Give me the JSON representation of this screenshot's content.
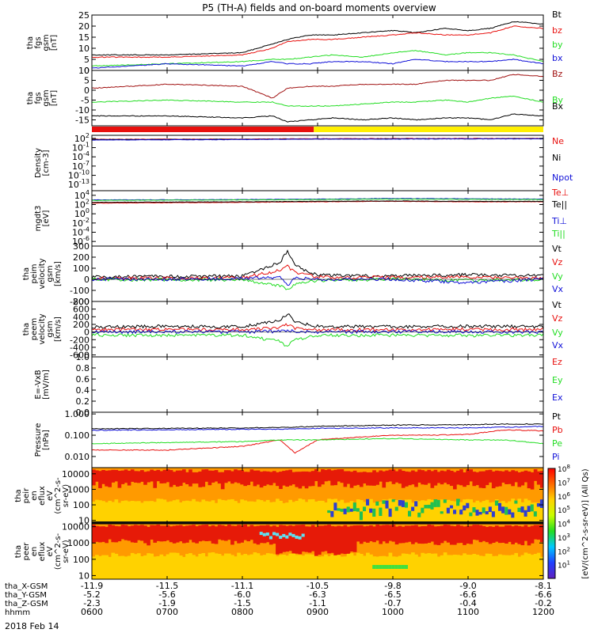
{
  "title": "P5 (TH-A) fields and on-board moments overview",
  "date": "2018 Feb 14",
  "colors": {
    "black": "#000000",
    "red": "#e8100e",
    "green": "#22dd22",
    "blue": "#1010d8",
    "darkred": "#a01010",
    "yellow": "#ffef00"
  },
  "chart_data": [
    {
      "type": "line",
      "ylabel": [
        "tha",
        "fgs",
        "gsm",
        "[nT]"
      ],
      "ylim": [
        0,
        25
      ],
      "scale": "linear",
      "ticks": [
        0,
        5,
        10,
        15,
        20,
        25
      ],
      "legend": [
        "Bt",
        "bz",
        "by",
        "bx"
      ],
      "legend_colors": [
        "black",
        "red",
        "green",
        "blue"
      ],
      "series": [
        {
          "name": "Bt",
          "color": "black",
          "x": [
            6.0,
            7.0,
            8.0,
            8.4,
            8.6,
            8.9,
            9.2,
            9.6,
            10.0,
            10.3,
            10.7,
            11.0,
            11.3,
            11.6,
            12.0
          ],
          "y": [
            7,
            7,
            8,
            12,
            14,
            16,
            16,
            17,
            18,
            17,
            19,
            18,
            19,
            22,
            21
          ]
        },
        {
          "name": "bz",
          "color": "red",
          "x": [
            6.0,
            7.0,
            8.0,
            8.4,
            8.6,
            8.9,
            9.2,
            9.6,
            10.0,
            10.3,
            10.7,
            11.0,
            11.3,
            11.6,
            12.0
          ],
          "y": [
            6,
            6,
            7,
            10,
            13,
            14,
            14,
            15,
            16,
            17,
            16,
            16,
            17,
            20,
            19
          ]
        },
        {
          "name": "by",
          "color": "green",
          "x": [
            6.0,
            7.0,
            8.0,
            8.4,
            8.6,
            8.9,
            9.2,
            9.6,
            10.0,
            10.3,
            10.7,
            11.0,
            11.3,
            11.6,
            12.0
          ],
          "y": [
            2,
            3,
            4,
            5,
            5,
            6,
            7,
            6,
            8,
            9,
            7,
            8,
            8,
            7,
            4
          ]
        },
        {
          "name": "bx",
          "color": "blue",
          "x": [
            6.0,
            7.0,
            8.0,
            8.4,
            8.6,
            8.9,
            9.2,
            9.6,
            10.0,
            10.3,
            10.7,
            11.0,
            11.3,
            11.6,
            12.0
          ],
          "y": [
            1,
            3,
            2,
            4,
            3,
            3,
            4,
            4,
            3,
            5,
            4,
            4,
            4,
            5,
            3
          ]
        }
      ]
    },
    {
      "type": "line",
      "ylabel": [
        "tha",
        "fgs",
        "gsm",
        "[nT]"
      ],
      "ylim": [
        -18,
        10
      ],
      "scale": "linear",
      "ticks": [
        -15,
        -10,
        -5,
        0,
        5,
        10
      ],
      "legend": [
        "Bz",
        "By",
        "Bx"
      ],
      "legend_colors": [
        "darkred",
        "green",
        "black"
      ],
      "series": [
        {
          "name": "Bz",
          "color": "darkred",
          "x": [
            6.0,
            7.0,
            8.0,
            8.4,
            8.6,
            8.9,
            9.2,
            9.6,
            10.0,
            10.3,
            10.7,
            11.0,
            11.3,
            11.6,
            12.0
          ],
          "y": [
            1,
            3,
            2,
            -4,
            1,
            2,
            2,
            3,
            3,
            3,
            5,
            5,
            5,
            8,
            7
          ]
        },
        {
          "name": "By",
          "color": "green",
          "x": [
            6.0,
            7.0,
            8.0,
            8.4,
            8.6,
            8.9,
            9.2,
            9.6,
            10.0,
            10.3,
            10.7,
            11.0,
            11.3,
            11.6,
            12.0
          ],
          "y": [
            -6,
            -5,
            -6,
            -6,
            -8,
            -8,
            -8,
            -7,
            -6,
            -6,
            -5,
            -6,
            -4,
            -3,
            -6
          ]
        },
        {
          "name": "Bx",
          "color": "black",
          "x": [
            6.0,
            7.0,
            8.0,
            8.4,
            8.6,
            8.9,
            9.2,
            9.6,
            10.0,
            10.3,
            10.7,
            11.0,
            11.3,
            11.6,
            12.0
          ],
          "y": [
            -13,
            -13,
            -14,
            -13,
            -16,
            -15,
            -14,
            -15,
            -14,
            -15,
            -14,
            -14,
            -15,
            -12,
            -13
          ]
        }
      ]
    },
    {
      "type": "bar",
      "name": "mode_bar",
      "segments": [
        {
          "from": 6.0,
          "to": 8.95,
          "color": "red"
        },
        {
          "from": 8.95,
          "to": 12.0,
          "color": "yellow"
        }
      ]
    },
    {
      "type": "line",
      "ylabel": [
        "Density",
        "[cm-3]"
      ],
      "ylim": [
        1e-15,
        1000
      ],
      "scale": "log",
      "ticks": [
        {
          "exp": 2
        },
        {
          "exp": -1
        },
        {
          "exp": -4
        },
        {
          "exp": -7
        },
        {
          "exp": -10
        },
        {
          "exp": -13
        }
      ],
      "legend": [
        "Ne",
        "Ni",
        "Npot"
      ],
      "legend_colors": [
        "red",
        "black",
        "blue"
      ],
      "series": [
        {
          "name": "Ne",
          "color": "red",
          "x": [
            6.0,
            8.0,
            9.0,
            10.0,
            11.0,
            12.0
          ],
          "y": [
            50,
            60,
            80,
            90,
            90,
            100
          ]
        },
        {
          "name": "Ni",
          "color": "black",
          "x": [
            6.0,
            8.0,
            9.0,
            10.0,
            11.0,
            12.0
          ],
          "y": [
            40,
            50,
            60,
            70,
            70,
            80
          ]
        },
        {
          "name": "Npot",
          "color": "blue",
          "x": [
            6.0,
            8.0,
            9.0,
            10.0,
            11.0,
            12.0
          ],
          "y": [
            30,
            40,
            60,
            60,
            70,
            70
          ]
        }
      ]
    },
    {
      "type": "line",
      "ylabel": [
        "mgdt3",
        "[eV]"
      ],
      "ylim": [
        1e-07,
        100000
      ],
      "scale": "log",
      "ticks": [
        {
          "exp": 4
        },
        {
          "exp": 2
        },
        {
          "exp": 0
        },
        {
          "exp": -2
        },
        {
          "exp": -4
        },
        {
          "exp": -6
        }
      ],
      "legend": [
        "Te⊥",
        "Te||",
        "Ti⊥",
        "Ti||"
      ],
      "legend_colors": [
        "red",
        "black",
        "blue",
        "green"
      ],
      "series": [
        {
          "name": "Te⊥",
          "color": "red",
          "x": [
            6.0,
            8.0,
            9.0,
            10.0,
            11.0,
            12.0
          ],
          "y": [
            200,
            300,
            400,
            500,
            400,
            400
          ]
        },
        {
          "name": "Te||",
          "color": "black",
          "x": [
            6.0,
            8.0,
            9.0,
            10.0,
            11.0,
            12.0
          ],
          "y": [
            300,
            400,
            500,
            600,
            500,
            500
          ]
        },
        {
          "name": "Ti⊥",
          "color": "blue",
          "x": [
            6.0,
            8.0,
            9.0,
            10.0,
            11.0,
            12.0
          ],
          "y": [
            1000,
            1200,
            1500,
            2000,
            1800,
            1500
          ]
        },
        {
          "name": "Ti||",
          "color": "green",
          "x": [
            6.0,
            8.0,
            9.0,
            10.0,
            11.0,
            12.0
          ],
          "y": [
            800,
            1000,
            1200,
            1500,
            1400,
            1200
          ]
        }
      ]
    },
    {
      "type": "line",
      "ylabel": [
        "tha",
        "peim",
        "velocity",
        "gsm",
        "[km/s]"
      ],
      "ylim": [
        -200,
        300
      ],
      "scale": "linear",
      "ticks": [
        -200,
        -100,
        0,
        100,
        200,
        300
      ],
      "legend": [
        "Vt",
        "Vz",
        "Vy",
        "Vx"
      ],
      "legend_colors": [
        "black",
        "red",
        "green",
        "blue"
      ],
      "series": [
        {
          "name": "Vt",
          "color": "black",
          "x": [
            6.0,
            7.0,
            8.0,
            8.5,
            8.6,
            8.7,
            9.0,
            9.5,
            10.0,
            11.0,
            12.0
          ],
          "y": [
            20,
            25,
            30,
            150,
            260,
            120,
            40,
            30,
            30,
            40,
            30
          ]
        },
        {
          "name": "Vz",
          "color": "red",
          "x": [
            6.0,
            7.0,
            8.0,
            8.5,
            8.6,
            8.7,
            9.0,
            9.5,
            10.0,
            11.0,
            12.0
          ],
          "y": [
            10,
            10,
            15,
            80,
            120,
            60,
            20,
            15,
            20,
            20,
            10
          ]
        },
        {
          "name": "Vy",
          "color": "green",
          "x": [
            6.0,
            7.0,
            8.0,
            8.5,
            8.6,
            8.7,
            9.0,
            9.5,
            10.0,
            11.0,
            12.0
          ],
          "y": [
            0,
            -5,
            -5,
            -60,
            -100,
            -40,
            -10,
            -5,
            0,
            -10,
            -5
          ]
        },
        {
          "name": "Vx",
          "color": "blue",
          "x": [
            6.0,
            7.0,
            8.0,
            8.5,
            8.6,
            8.7,
            9.0,
            9.5,
            10.0,
            11.0,
            12.0
          ],
          "y": [
            0,
            0,
            5,
            20,
            -60,
            10,
            0,
            0,
            0,
            -30,
            0
          ]
        }
      ]
    },
    {
      "type": "line",
      "ylabel": [
        "tha",
        "peem",
        "velocity",
        "gsm",
        "[km/s]"
      ],
      "ylim": [
        -650,
        800
      ],
      "scale": "linear",
      "ticks": [
        -600,
        -400,
        -200,
        0,
        200,
        400,
        600,
        800
      ],
      "legend": [
        "Vt",
        "Vz",
        "Vy",
        "Vx"
      ],
      "legend_colors": [
        "black",
        "red",
        "green",
        "blue"
      ],
      "series": [
        {
          "name": "Vt",
          "color": "black",
          "x": [
            6.0,
            7.0,
            8.0,
            8.5,
            8.6,
            8.7,
            9.0,
            10.0,
            11.0,
            12.0
          ],
          "y": [
            130,
            150,
            140,
            300,
            480,
            250,
            150,
            140,
            150,
            140
          ]
        },
        {
          "name": "Vz",
          "color": "red",
          "x": [
            6.0,
            7.0,
            8.0,
            8.5,
            8.6,
            8.7,
            9.0,
            10.0,
            11.0,
            12.0
          ],
          "y": [
            60,
            70,
            60,
            120,
            200,
            100,
            60,
            60,
            70,
            60
          ]
        },
        {
          "name": "Vy",
          "color": "green",
          "x": [
            6.0,
            7.0,
            8.0,
            8.5,
            8.6,
            8.7,
            9.0,
            10.0,
            11.0,
            12.0
          ],
          "y": [
            -80,
            -90,
            -80,
            -250,
            -380,
            -200,
            -90,
            -80,
            -90,
            -80
          ]
        },
        {
          "name": "Vx",
          "color": "blue",
          "x": [
            6.0,
            7.0,
            8.0,
            8.5,
            8.6,
            8.7,
            9.0,
            10.0,
            11.0,
            12.0
          ],
          "y": [
            0,
            10,
            0,
            20,
            40,
            10,
            0,
            10,
            0,
            0
          ]
        }
      ]
    },
    {
      "type": "line",
      "ylabel": [
        "E=-VxB",
        "[mV/m]"
      ],
      "ylim": [
        0,
        1
      ],
      "scale": "linear",
      "ticks": [
        0,
        0.2,
        0.4,
        0.6,
        0.8,
        1.0
      ],
      "tick_labels": [
        "0.0",
        "0.2",
        "0.4",
        "0.6",
        "0.8",
        "1.0"
      ],
      "legend": [
        "Ez",
        "Ey",
        "Ex"
      ],
      "legend_colors": [
        "red",
        "green",
        "blue"
      ],
      "series": []
    },
    {
      "type": "line",
      "ylabel": [
        "Pressure",
        "[nPa]"
      ],
      "ylim": [
        0.003,
        1.2
      ],
      "scale": "log",
      "ticks": [
        0.001,
        0.01,
        0.1,
        1.0
      ],
      "tick_labels": [
        "0.001",
        "0.010",
        "0.100",
        "1.000"
      ],
      "legend": [
        "Pt",
        "Pb",
        "Pe",
        "Pi"
      ],
      "legend_colors": [
        "black",
        "red",
        "green",
        "blue"
      ],
      "series": [
        {
          "name": "Pt",
          "color": "black",
          "x": [
            6.0,
            7.0,
            8.0,
            8.5,
            9.0,
            10.0,
            11.0,
            11.5,
            12.0
          ],
          "y": [
            0.2,
            0.21,
            0.22,
            0.23,
            0.26,
            0.3,
            0.31,
            0.34,
            0.33
          ]
        },
        {
          "name": "Pb",
          "color": "red",
          "x": [
            6.0,
            7.0,
            8.0,
            8.5,
            8.7,
            9.0,
            9.5,
            10.0,
            10.5,
            11.0,
            11.5,
            12.0
          ],
          "y": [
            0.02,
            0.02,
            0.03,
            0.06,
            0.015,
            0.06,
            0.08,
            0.1,
            0.1,
            0.11,
            0.18,
            0.16
          ]
        },
        {
          "name": "Pe",
          "color": "green",
          "x": [
            6.0,
            7.0,
            8.0,
            8.5,
            9.0,
            10.0,
            11.0,
            11.5,
            12.0
          ],
          "y": [
            0.04,
            0.045,
            0.05,
            0.06,
            0.06,
            0.07,
            0.06,
            0.06,
            0.04
          ]
        },
        {
          "name": "Pi",
          "color": "blue",
          "x": [
            6.0,
            7.0,
            8.0,
            8.5,
            9.0,
            10.0,
            11.0,
            11.5,
            12.0
          ],
          "y": [
            0.17,
            0.18,
            0.19,
            0.19,
            0.21,
            0.22,
            0.22,
            0.24,
            0.26
          ]
        }
      ]
    },
    {
      "type": "heatmap",
      "ylabel": [
        "tha",
        "peir",
        "en",
        "eflux",
        "eV",
        "(cm^2-s-",
        "sr-eV)"
      ],
      "scale": "log",
      "ylim": [
        6,
        25000
      ],
      "ticks": [
        10,
        100,
        1000,
        10000
      ],
      "tick_labels": [
        "10",
        "100",
        "1000",
        "10000"
      ]
    },
    {
      "type": "heatmap",
      "ylabel": [
        "tha",
        "peer",
        "en",
        "eflux",
        "eV",
        "(cm^2-s-",
        "sr-eV)"
      ],
      "scale": "log",
      "ylim": [
        6,
        15000
      ],
      "ticks": [
        10,
        100,
        1000,
        10000
      ],
      "tick_labels": [
        "10",
        "100",
        "1000",
        "10000"
      ]
    }
  ],
  "colorbar": {
    "label": "[eV/(cm^2-s-sr-eV)] (All Qs)",
    "ticks": [
      {
        "exp": 8
      },
      {
        "exp": 7
      },
      {
        "exp": 6
      },
      {
        "exp": 5
      },
      {
        "exp": 4
      },
      {
        "exp": 3
      },
      {
        "exp": 2
      },
      {
        "exp": 1
      }
    ],
    "ylim": [
      1,
      100000000
    ]
  },
  "xaxis": {
    "xlim": [
      6.0,
      12.0
    ],
    "ticks": [
      6,
      7,
      8,
      9,
      10,
      11,
      12
    ],
    "rows": [
      {
        "label": "tha_X-GSM",
        "values": [
          "-11.9",
          "-11.5",
          "-11.1",
          "-10.5",
          "-9.8",
          "-9.0",
          "-8.1"
        ]
      },
      {
        "label": "tha_Y-GSM",
        "values": [
          "-5.2",
          "-5.6",
          "-6.0",
          "-6.3",
          "-6.5",
          "-6.6",
          "-6.6"
        ]
      },
      {
        "label": "tha_Z-GSM",
        "values": [
          "-2.3",
          "-1.9",
          "-1.5",
          "-1.1",
          "-0.7",
          "-0.4",
          "-0.2"
        ]
      },
      {
        "label": "hhmm",
        "values": [
          "0600",
          "0700",
          "0800",
          "0900",
          "1000",
          "1100",
          "1200"
        ]
      }
    ]
  }
}
